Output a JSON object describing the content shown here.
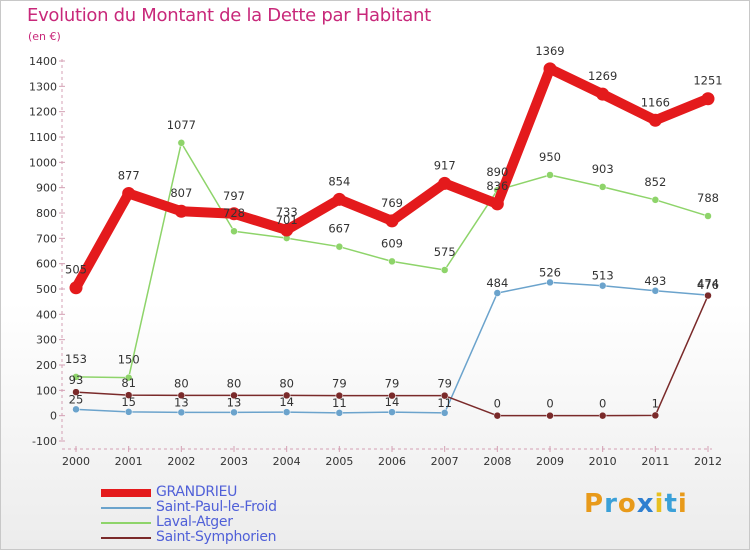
{
  "header": {
    "title": "Evolution du Montant de la Dette par Habitant",
    "unit": "(en €)"
  },
  "logo": {
    "letters": [
      "P",
      "r",
      "o",
      "x",
      "i",
      "t",
      "i"
    ],
    "colors": [
      "#e89a1a",
      "#3aa0d8",
      "#e89a1a",
      "#2f7fd0",
      "#e8c020",
      "#3aa0d8",
      "#e89a1a"
    ]
  },
  "chart_data": {
    "type": "line",
    "title": "Evolution du Montant de la Dette par Habitant",
    "ylabel": "(en €)",
    "x": [
      "2000",
      "2001",
      "2002",
      "2003",
      "2004",
      "2005",
      "2006",
      "2007",
      "2008",
      "2009",
      "2010",
      "2011",
      "2012"
    ],
    "ylim": [
      -100,
      1400
    ],
    "yticks": [
      -100,
      0,
      100,
      200,
      300,
      400,
      500,
      600,
      700,
      800,
      900,
      1000,
      1100,
      1200,
      1300,
      1400
    ],
    "grid": false,
    "legend_position": "bottom-left",
    "series": [
      {
        "name": "GRANDRIEU",
        "color": "#e41a1c",
        "values": [
          505,
          877,
          807,
          797,
          733,
          854,
          769,
          917,
          836,
          1369,
          1269,
          1166,
          1251
        ],
        "labels": [
          "505",
          "877",
          "807",
          "797",
          "733",
          "854",
          "769",
          "917",
          "836",
          "1369",
          "1269",
          "1166",
          "1251"
        ]
      },
      {
        "name": "Saint-Paul-le-Froid",
        "color": "#6ba3cc",
        "values": [
          25,
          15,
          13,
          13,
          14,
          11,
          14,
          11,
          484,
          526,
          513,
          493,
          476
        ],
        "labels": [
          "25",
          "15",
          "13",
          "13",
          "14",
          "11",
          "14",
          "11",
          "484",
          "526",
          "513",
          "493",
          "476"
        ]
      },
      {
        "name": "Laval-Atger",
        "color": "#8ed46a",
        "values": [
          153,
          150,
          1077,
          728,
          701,
          667,
          609,
          575,
          890,
          950,
          903,
          852,
          788
        ],
        "labels": [
          "153",
          "150",
          "1077",
          "728",
          "701",
          "667",
          "609",
          "575",
          "890",
          "950",
          "903",
          "852",
          "788"
        ]
      },
      {
        "name": "Saint-Symphorien",
        "color": "#7a2a2a",
        "values": [
          93,
          81,
          80,
          80,
          80,
          79,
          79,
          79,
          0,
          0,
          0,
          1,
          474
        ],
        "labels": [
          "93",
          "81",
          "80",
          "80",
          "80",
          "79",
          "79",
          "79",
          "0",
          "0",
          "0",
          "1",
          "474"
        ]
      }
    ]
  }
}
